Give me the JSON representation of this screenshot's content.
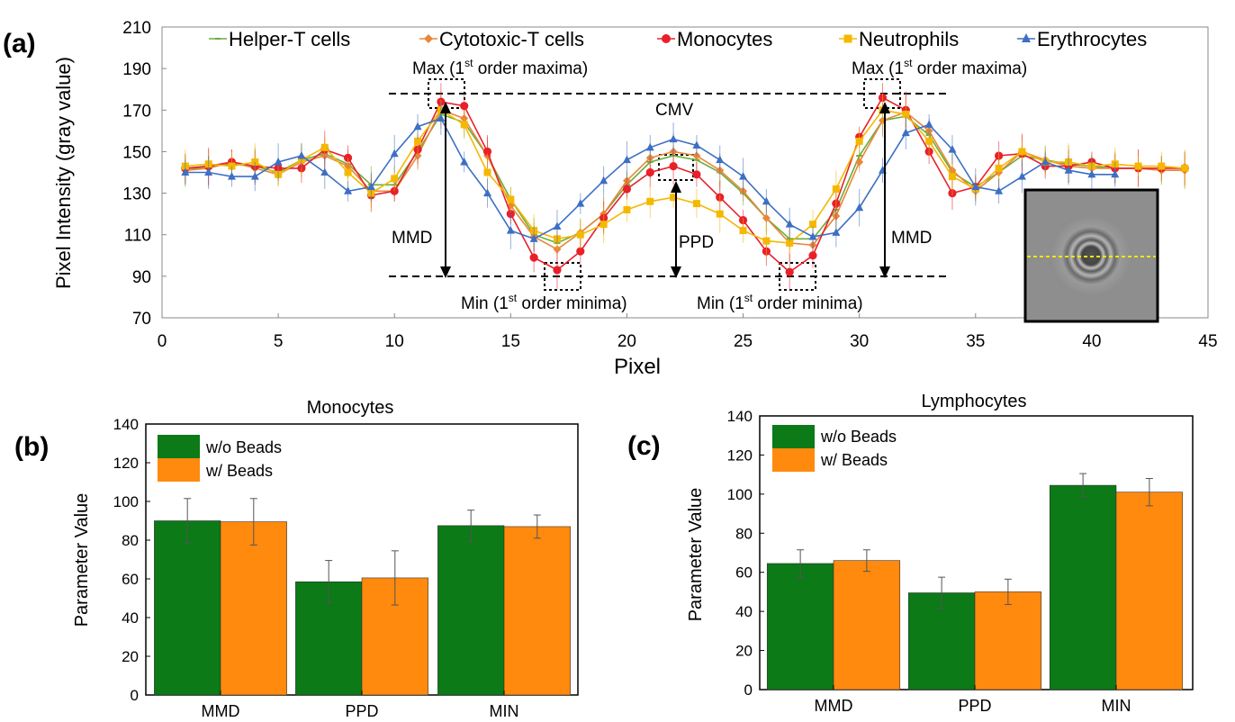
{
  "panels": {
    "a": "(a)",
    "b": "(b)",
    "c": "(c)"
  },
  "colors": {
    "helper": "#6aae3c",
    "cytotoxic": "#e8873a",
    "monocytes": "#e8202a",
    "neutrophils": "#f5b800",
    "erythrocytes": "#3d6fc4",
    "bar_green": "#0b7a17",
    "bar_orange": "#ff8a0e"
  },
  "chart_data": [
    {
      "id": "a",
      "type": "line",
      "xlabel": "Pixel",
      "ylabel": "Pixel Intensity (gray value)",
      "xlim": [
        0,
        45
      ],
      "ylim": [
        70,
        210
      ],
      "xticks": [
        0,
        5,
        10,
        15,
        20,
        25,
        30,
        35,
        40,
        45
      ],
      "yticks": [
        70,
        90,
        110,
        130,
        150,
        170,
        190,
        210
      ],
      "x": [
        1,
        2,
        3,
        4,
        5,
        6,
        7,
        8,
        9,
        10,
        11,
        12,
        13,
        14,
        15,
        16,
        17,
        18,
        19,
        20,
        21,
        22,
        23,
        24,
        25,
        26,
        27,
        28,
        29,
        30,
        31,
        32,
        33,
        34,
        35,
        36,
        37,
        38,
        39,
        40,
        41,
        42,
        43,
        44
      ],
      "series": [
        {
          "name": "Helper-T cells",
          "key": "helper",
          "marker": "dash",
          "values": [
            141,
            143,
            144,
            143,
            140,
            146,
            149,
            144,
            134,
            134,
            150,
            168,
            164,
            148,
            127,
            110,
            106,
            111,
            120,
            134,
            145,
            148,
            146,
            140,
            130,
            118,
            108,
            108,
            122,
            148,
            165,
            167,
            158,
            140,
            133,
            140,
            148,
            146,
            144,
            143,
            142,
            142,
            141,
            141
          ]
        },
        {
          "name": "Cytotoxic-T cells",
          "key": "cytotoxic",
          "marker": "diamond",
          "values": [
            141,
            142,
            145,
            142,
            139,
            145,
            148,
            143,
            131,
            131,
            148,
            170,
            166,
            148,
            124,
            109,
            103,
            111,
            120,
            136,
            147,
            150,
            148,
            141,
            131,
            118,
            106,
            105,
            119,
            145,
            165,
            169,
            160,
            141,
            131,
            140,
            150,
            146,
            143,
            142,
            142,
            142,
            141,
            141
          ]
        },
        {
          "name": "Monocytes",
          "key": "monocytes",
          "marker": "circle",
          "values": [
            142,
            143,
            145,
            143,
            142,
            142,
            151,
            147,
            129,
            131,
            151,
            174,
            172,
            150,
            120,
            99,
            93,
            102,
            118,
            132,
            140,
            143,
            139,
            128,
            117,
            102,
            92,
            100,
            125,
            157,
            176,
            170,
            150,
            130,
            133,
            148,
            149,
            143,
            143,
            145,
            142,
            142,
            142,
            142
          ]
        },
        {
          "name": "Neutrophils",
          "key": "neutrophils",
          "marker": "square",
          "values": [
            143,
            144,
            143,
            145,
            139,
            146,
            152,
            140,
            130,
            137,
            155,
            170,
            163,
            140,
            127,
            112,
            108,
            110,
            115,
            122,
            126,
            128,
            125,
            120,
            112,
            107,
            106,
            115,
            132,
            155,
            170,
            168,
            155,
            138,
            132,
            142,
            150,
            145,
            145,
            143,
            144,
            143,
            143,
            142
          ]
        },
        {
          "name": "Erythrocytes",
          "key": "erythrocytes",
          "marker": "triangle",
          "values": [
            140,
            140,
            138,
            138,
            145,
            148,
            140,
            131,
            133,
            149,
            162,
            166,
            145,
            130,
            112,
            108,
            114,
            125,
            136,
            146,
            152,
            156,
            153,
            146,
            138,
            126,
            115,
            109,
            111,
            123,
            141,
            159,
            163,
            151,
            133,
            131,
            138,
            145,
            141,
            139,
            139,
            null,
            null,
            null
          ]
        }
      ]
    },
    {
      "id": "b",
      "type": "bar",
      "title": "Monocytes",
      "categories": [
        "MMD",
        "PPD",
        "MIN"
      ],
      "ylabel": "Parameter Value",
      "ylim": [
        0,
        140
      ],
      "yticks": [
        0,
        20,
        40,
        60,
        80,
        100,
        120,
        140
      ],
      "series": [
        {
          "name": "w/o Beads",
          "key": "bar_green",
          "values": [
            90,
            58.5,
            87.5
          ],
          "errors": [
            11.5,
            11,
            8
          ]
        },
        {
          "name": "w/ Beads",
          "key": "bar_orange",
          "values": [
            89.5,
            60.5,
            87
          ],
          "errors": [
            12,
            14,
            6
          ]
        }
      ]
    },
    {
      "id": "c",
      "type": "bar",
      "title": "Lymphocytes",
      "categories": [
        "MMD",
        "PPD",
        "MIN"
      ],
      "ylabel": "Parameter Value",
      "ylim": [
        0,
        140
      ],
      "yticks": [
        0,
        20,
        40,
        60,
        80,
        100,
        120,
        140
      ],
      "series": [
        {
          "name": "w/o Beads",
          "key": "bar_green",
          "values": [
            64.5,
            49.5,
            104.5
          ],
          "errors": [
            7,
            8,
            6
          ]
        },
        {
          "name": "w/ Beads",
          "key": "bar_orange",
          "values": [
            66,
            50,
            101
          ],
          "errors": [
            5.5,
            6.5,
            7
          ]
        }
      ]
    }
  ],
  "annotations": {
    "max_left": "Max (1",
    "max_right": "Max (1",
    "max_sup": "st",
    "max_tail": " order maxima)",
    "cmv": "CMV",
    "mmd_left": "MMD",
    "mmd_right": "MMD",
    "ppd": "PPD",
    "min_left": "Min (1",
    "min_right": "Min (1",
    "min_sup": "st",
    "min_tail": " order minima)"
  }
}
